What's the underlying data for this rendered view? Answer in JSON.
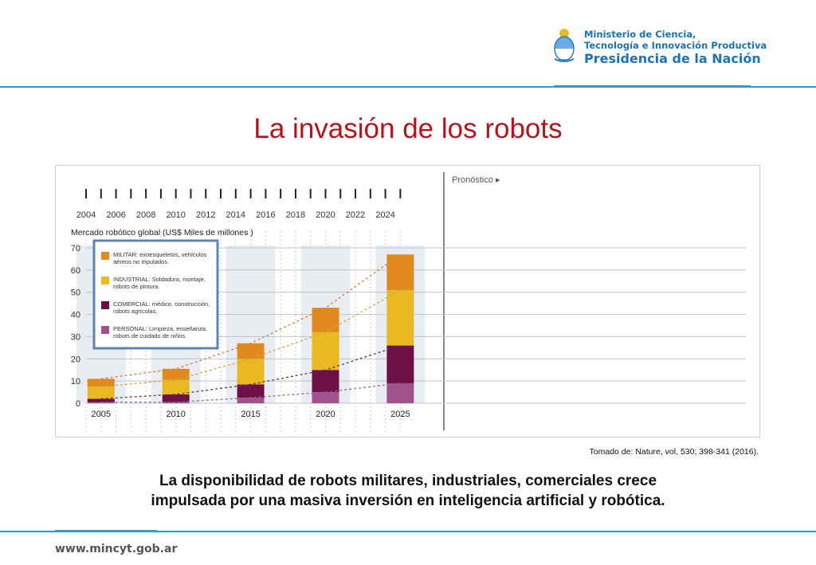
{
  "header": {
    "logo_line1": "Ministerio de Ciencia,",
    "logo_line2": "Tecnología e Innovación Productiva",
    "logo_line3": "Presidencia de la Nación",
    "seal_icon": "argentina-coat-of-arms-icon"
  },
  "title": "La invasión de los robots",
  "chart_data": {
    "type": "bar",
    "stacked": true,
    "forecast_label": "Pronóstico",
    "ylabel": "Mercado robótico global (US$ Miles de millones )",
    "ylim": [
      0,
      70
    ],
    "yticks": [
      "0",
      "10",
      "20",
      "30",
      "40",
      "50",
      "60",
      "70"
    ],
    "timeline_years": [
      "2004",
      "2006",
      "2008",
      "2010",
      "2012",
      "2014",
      "2016",
      "2018",
      "2020",
      "2022",
      "2024"
    ],
    "categories": [
      "2005",
      "2010",
      "2015",
      "2020",
      "2025"
    ],
    "series": [
      {
        "name": "PERSONAL: Limpieza, enseñanza, robots de cuidado de niños.",
        "color": "#a2528a",
        "values": [
          0.5,
          0.5,
          2.5,
          5,
          9
        ]
      },
      {
        "name": "COMERCIAL: médico, construcción, robots agrícolas.",
        "color": "#6e0f45",
        "values": [
          1.5,
          3.5,
          6,
          10,
          17
        ]
      },
      {
        "name": "INDUSTRIAL: Soldadura, montaje, robots de pintura.",
        "color": "#e8b923",
        "values": [
          5.5,
          6.5,
          11.5,
          17,
          25
        ]
      },
      {
        "name": "MILITAR: exoesqueletos, vehículos aéreos no tripulados.",
        "color": "#e08a1e",
        "values": [
          3.5,
          5,
          7,
          11,
          16
        ]
      }
    ],
    "legend_position": "top-left",
    "grid": true
  },
  "source": "Tomado de: Nature, vol, 530; 398-341 (2016).",
  "caption_line1": "La disponibilidad de robots militares, industriales, comerciales crece",
  "caption_line2": "impulsada por una masiva inversión en inteligencia artificial y robótica.",
  "footer": {
    "url": "www.mincyt.gob.ar"
  }
}
